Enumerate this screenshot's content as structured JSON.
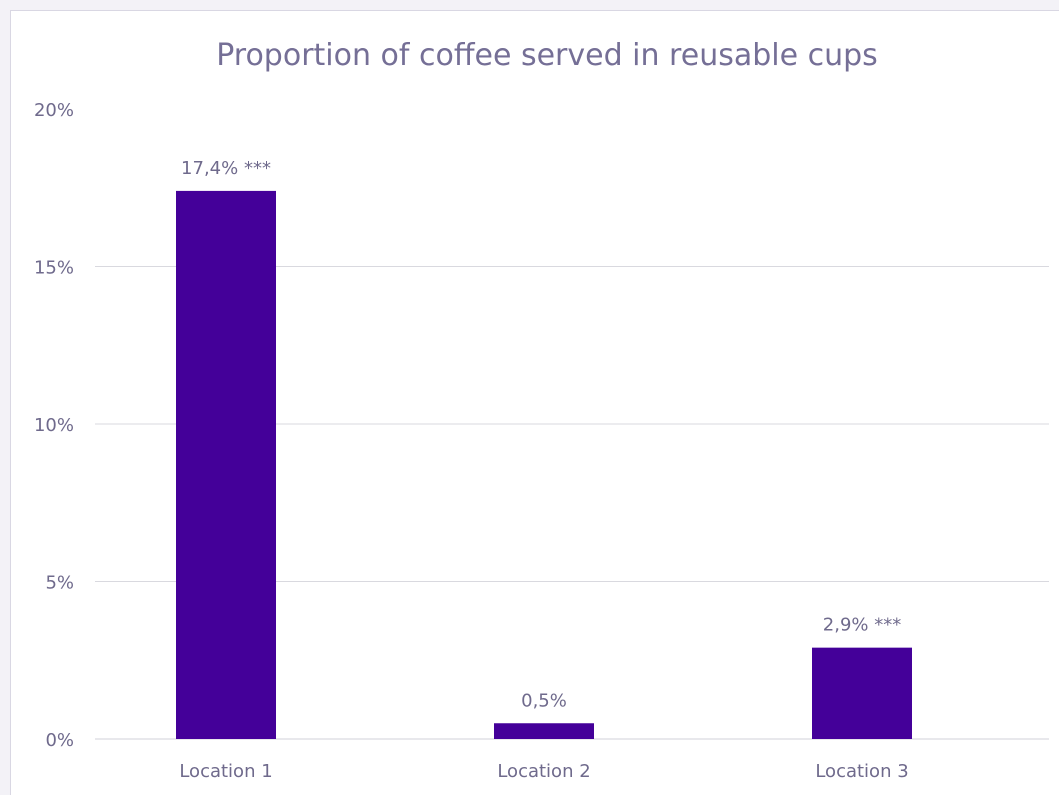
{
  "chart_data": {
    "type": "bar",
    "title": "Proportion of coffee served in reusable cups",
    "xlabel": "",
    "ylabel": "",
    "categories": [
      "Location 1",
      "Location 2",
      "Location 3"
    ],
    "values": [
      17.4,
      0.5,
      2.9
    ],
    "data_labels": [
      "17,4% ***",
      "0,5%",
      "2,9% ***"
    ],
    "y_ticks": [
      0,
      5,
      10,
      15,
      20
    ],
    "y_tick_labels": [
      "0%",
      "5%",
      "10%",
      "15%",
      "20%"
    ],
    "ylim": [
      0,
      20
    ],
    "grid": true,
    "legend": "none",
    "colors": {
      "bar": "#440099",
      "title": "#756f96",
      "text": "#6f6a8c",
      "grid": "#d9d9df"
    }
  }
}
